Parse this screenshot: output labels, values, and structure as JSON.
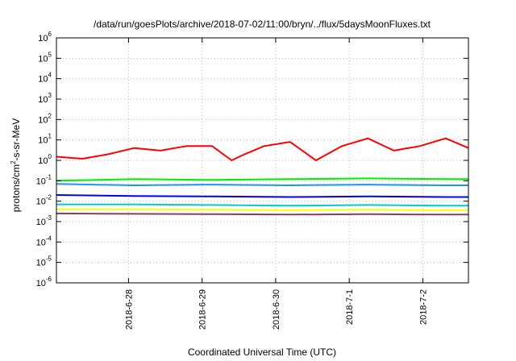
{
  "chart_data": {
    "type": "line",
    "title": "/data/run/goesPlots/archive/2018-07-02/11:00/bryn/../flux/5daysMoonFluxes.txt",
    "xlabel": "Coordinated Universal Time (UTC)",
    "ylabel": "protons/cm2-s-sr-MeV",
    "y_scale": "log",
    "ylim": [
      1e-06,
      1000000.0
    ],
    "y_ticks": [
      {
        "value": 1e-06,
        "base": "10",
        "exp": "-6"
      },
      {
        "value": 1e-05,
        "base": "10",
        "exp": "-5"
      },
      {
        "value": 0.0001,
        "base": "10",
        "exp": "-4"
      },
      {
        "value": 0.001,
        "base": "10",
        "exp": "-3"
      },
      {
        "value": 0.01,
        "base": "10",
        "exp": "-2"
      },
      {
        "value": 0.1,
        "base": "10",
        "exp": "-1"
      },
      {
        "value": 1,
        "base": "10",
        "exp": "0"
      },
      {
        "value": 10,
        "base": "10",
        "exp": "1"
      },
      {
        "value": 100,
        "base": "10",
        "exp": "2"
      },
      {
        "value": 1000,
        "base": "10",
        "exp": "3"
      },
      {
        "value": 10000,
        "base": "10",
        "exp": "4"
      },
      {
        "value": 100000,
        "base": "10",
        "exp": "5"
      },
      {
        "value": 1000000,
        "base": "10",
        "exp": "6"
      }
    ],
    "x_ticks": [
      "2018-6-28",
      "2018-6-29",
      "2018-6-30",
      "2018-7-1",
      "2018-7-2"
    ],
    "xlim": [
      "2018-06-27T04:00",
      "2018-07-02T11:00"
    ],
    "grid": true,
    "legend": "none",
    "series": [
      {
        "color": "#ff0000",
        "x": [
          "2018-06-27T04:00",
          "2018-06-27T12:00",
          "2018-06-27T20:00",
          "2018-06-28T04:00",
          "2018-06-28T12:00",
          "2018-06-28T20:00",
          "2018-06-29T04:00",
          "2018-06-29T10:00",
          "2018-06-29T14:00",
          "2018-06-29T20:00",
          "2018-06-30T04:00",
          "2018-06-30T12:00",
          "2018-06-30T20:00",
          "2018-07-01T04:00",
          "2018-07-01T12:00",
          "2018-07-01T20:00",
          "2018-07-02T04:00",
          "2018-07-02T11:00"
        ],
        "y": [
          1.5,
          1.2,
          2,
          4,
          3,
          5,
          5,
          1,
          2,
          5,
          8,
          1,
          5,
          12,
          3,
          5,
          12,
          4
        ]
      },
      {
        "color": "#00ee00",
        "x": [
          "2018-06-27T04:00",
          "2018-06-28T04:00",
          "2018-06-29T04:00",
          "2018-06-30T04:00",
          "2018-07-01T04:00",
          "2018-07-02T04:00",
          "2018-07-02T11:00"
        ],
        "y": [
          0.1,
          0.12,
          0.11,
          0.12,
          0.13,
          0.12,
          0.12
        ]
      },
      {
        "color": "#1e90ff",
        "x": [
          "2018-06-27T04:00",
          "2018-06-28T04:00",
          "2018-06-29T04:00",
          "2018-06-30T04:00",
          "2018-07-01T04:00",
          "2018-07-02T04:00",
          "2018-07-02T11:00"
        ],
        "y": [
          0.07,
          0.06,
          0.065,
          0.06,
          0.065,
          0.06,
          0.06
        ]
      },
      {
        "color": "#0000ff",
        "x": [
          "2018-06-27T04:00",
          "2018-06-28T04:00",
          "2018-06-29T04:00",
          "2018-06-30T04:00",
          "2018-07-01T04:00",
          "2018-07-02T04:00",
          "2018-07-02T11:00"
        ],
        "y": [
          0.02,
          0.018,
          0.017,
          0.016,
          0.017,
          0.016,
          0.016
        ]
      },
      {
        "color": "#00cccc",
        "x": [
          "2018-06-27T04:00",
          "2018-06-28T04:00",
          "2018-06-29T04:00",
          "2018-06-30T04:00",
          "2018-07-01T04:00",
          "2018-07-02T04:00",
          "2018-07-02T11:00"
        ],
        "y": [
          0.007,
          0.007,
          0.0065,
          0.006,
          0.0065,
          0.006,
          0.006
        ]
      },
      {
        "color": "#ffff00",
        "x": [
          "2018-06-27T04:00",
          "2018-06-28T04:00",
          "2018-06-29T04:00",
          "2018-06-30T04:00",
          "2018-07-01T04:00",
          "2018-07-02T04:00",
          "2018-07-02T11:00"
        ],
        "y": [
          0.004,
          0.004,
          0.0038,
          0.0036,
          0.0038,
          0.0036,
          0.0036
        ]
      },
      {
        "color": "#8b3a62",
        "x": [
          "2018-06-27T04:00",
          "2018-06-28T04:00",
          "2018-06-29T04:00",
          "2018-06-30T04:00",
          "2018-07-01T04:00",
          "2018-07-02T04:00",
          "2018-07-02T11:00"
        ],
        "y": [
          0.0025,
          0.0024,
          0.0023,
          0.0022,
          0.0023,
          0.0022,
          0.0022
        ]
      }
    ]
  }
}
